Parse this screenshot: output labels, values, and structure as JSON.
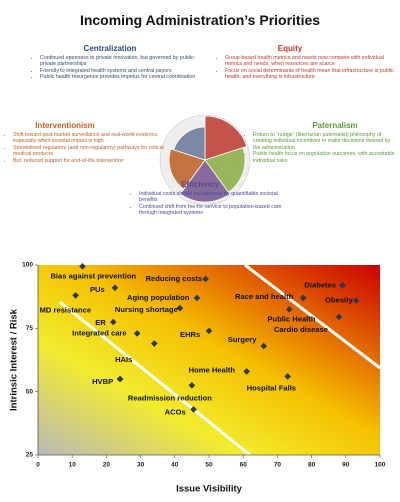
{
  "title": "Incoming Administration’s Priorities",
  "sections": [
    {
      "title": "Centralization",
      "color": "#2e4a7a",
      "text_color": "#3a4a66",
      "bullets": [
        "Continued openness to private innovation, but governed by public-private partnerships",
        "Friendly to integrated health systems and central payors",
        "Public health resurgence provides impetus for central coordination"
      ]
    },
    {
      "title": "Equity",
      "color": "#c0392b",
      "text_color": "#c0392b",
      "bullets": [
        "Group-based health metrics and needs now compete with individual metrics and needs, when resources are scarce",
        "Focus on social determinants of health mean that infrastructure is public health, and everything is infrastructure"
      ]
    },
    {
      "title": "Interventionism",
      "color": "#c0602a",
      "text_color": "#c0602a",
      "bullets": [
        "Shift toward post market surveillance and real-world evidence, especially when societal impact is high",
        "Streamlined regulatory (and non-regulatory) pathways for critical medical products",
        "But, reduced support for end-of-life intervention"
      ]
    },
    {
      "title": "Paternalism",
      "color": "#5a9a3a",
      "text_color": "#5a9a3a",
      "bullets": [
        "Return to “nudge” (libertarian paternalist) philosophy of creating individual incentives to make decisions desired by the administration",
        "Public health focus on population outcomes, with acceptable individual risks"
      ]
    },
    {
      "title": "Efficiency",
      "color": "#5b4a8a",
      "text_color": "#4a4a9a",
      "bullets": [
        "Individual costs should be balanced by quantifiable societal benefits",
        "Continued shift from fee-for-service to population-based care through integrated systems"
      ]
    }
  ],
  "chart_data": {
    "type": "scatter",
    "x_label": "Issue Visibility",
    "y_label": "Intrinsic Interest / Risk",
    "xlim": [
      0,
      100
    ],
    "ylim": [
      25,
      100
    ],
    "xticks": [
      0,
      10,
      20,
      30,
      40,
      50,
      60,
      70,
      80,
      90,
      100
    ],
    "yticks": [
      25,
      50,
      75,
      100
    ],
    "x": [
      13,
      22.5,
      11,
      49,
      46.5,
      41.5,
      22,
      29,
      34,
      50,
      89,
      77.5,
      93,
      73.5,
      88,
      66,
      61,
      73,
      24,
      24,
      45,
      45.5
    ],
    "point_labels": [
      "Bias against prevention",
      "PUs",
      "MD resistance",
      "Reducing costs",
      "Aging population",
      "Nursing shortage",
      "ER",
      "Integrated care",
      null,
      "EHRs",
      "Diabetes",
      "Race and health",
      "Obesity",
      "Public Health",
      "Cardio disease",
      "Surgery",
      "Home Health",
      "Hospital Falls",
      "HAIs",
      "HVBP",
      "Readmission reduction",
      "ACOs"
    ],
    "series": [
      {
        "color": "#2b3a5a",
        "values": [
          99.5,
          91,
          88,
          94.5,
          87,
          83,
          77.5,
          73,
          69,
          74,
          92,
          87,
          86,
          82.5,
          79.5,
          68,
          58,
          56,
          55,
          55,
          52.5,
          43
        ]
      }
    ]
  }
}
